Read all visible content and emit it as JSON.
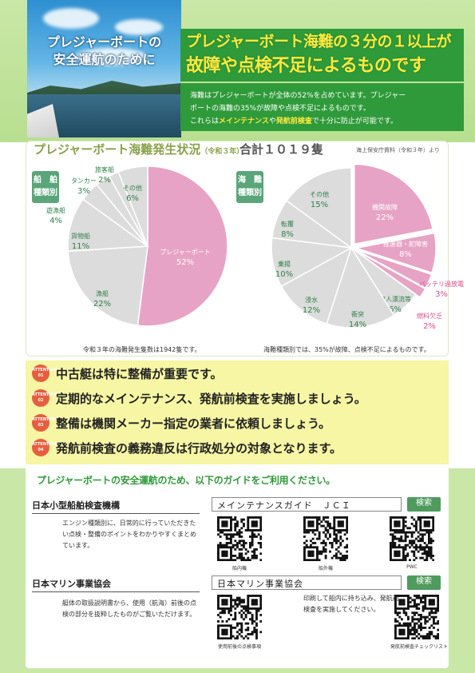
{
  "header": {
    "photo_title_1": "プレジャーボートの",
    "photo_title_2": "安全運航のために",
    "headline_1": "プレジャーボート海難の３分の１以上が",
    "headline_2": "故障や点検不足によるものです",
    "lead_1": "海難はプレジャーボートが全体の52%を占めています。プレジャー",
    "lead_2": "ボートの海難の35%が故障や点検不足によるものです。",
    "lead_3a": "これらは",
    "lead_3b": "メインテナンス",
    "lead_3c": "や",
    "lead_3d": "発航前検査",
    "lead_3e": "で十分に防止が可能です。"
  },
  "chart_section": {
    "title": "プレジャーボート海難発生状況",
    "title_year": "（令和３年）",
    "total": "合計１０１９隻",
    "source": "海上保安庁資料（令和３年）より",
    "left_box": [
      "船　舶",
      "種類別"
    ],
    "right_box": [
      "海　難",
      "種類別"
    ],
    "left_note": "令和３年の海難発生隻数は1942隻です。",
    "right_note": "海難種類別では、35%が故障、点検不足によるものです。"
  },
  "chart_data": [
    {
      "type": "pie",
      "title": "",
      "unit": "%",
      "slices": [
        {
          "label": "プレジャーボート",
          "value": 52,
          "color": "#e7a3c5"
        },
        {
          "label": "漁船",
          "value": 22,
          "color": "#dcdcdc"
        },
        {
          "label": "貨物船",
          "value": 11,
          "color": "#dcdcdc"
        },
        {
          "label": "遊漁船",
          "value": 4,
          "color": "#dcdcdc"
        },
        {
          "label": "タンカー",
          "value": 3,
          "color": "#dcdcdc"
        },
        {
          "label": "旅客船",
          "value": 2,
          "color": "#dcdcdc"
        },
        {
          "label": "その他",
          "value": 6,
          "color": "#dcdcdc"
        }
      ]
    },
    {
      "type": "pie",
      "title": "",
      "unit": "%",
      "slices": [
        {
          "label": "機関故障",
          "value": 22,
          "color": "#e7a3c5"
        },
        {
          "label": "推進器・舵障害",
          "value": 8,
          "color": "#e7a3c5"
        },
        {
          "label": "バッテリ過放電",
          "value": 3,
          "color": "#e7a3c5"
        },
        {
          "label": "燃料欠乏",
          "value": 2,
          "color": "#e7a3c5"
        },
        {
          "label": "無人漂流等",
          "value": 6,
          "color": "#dcdcdc"
        },
        {
          "label": "衝突",
          "value": 14,
          "color": "#dcdcdc"
        },
        {
          "label": "浸水",
          "value": 12,
          "color": "#dcdcdc"
        },
        {
          "label": "乗揚",
          "value": 10,
          "color": "#dcdcdc"
        },
        {
          "label": "転覆",
          "value": 8,
          "color": "#dcdcdc"
        },
        {
          "label": "その他",
          "value": 15,
          "color": "#dcdcdc"
        }
      ]
    }
  ],
  "attention": [
    {
      "badge": "ATTENTION 01",
      "text": "中古艇は特に整備が重要です。"
    },
    {
      "badge": "ATTENTION 02",
      "text": "定期的なメインテナンス、発航前検査を実施しましょう。"
    },
    {
      "badge": "ATTENTION 03",
      "text": "整備は機関メーカー指定の業者に依頼しましょう。"
    },
    {
      "badge": "ATTENTION 04",
      "text": "発航前検査の義務違反は行政処分の対象となります。"
    }
  ],
  "guides": {
    "heading": "プレジャーボートの安全運航のため、以下のガイドをご利用ください。",
    "org1": {
      "name": "日本小型船舶検査機構",
      "desc": "エンジン種類別に、日常的に行っていただきたい点検・整備のポイントをわかりやすくまとめています。",
      "search_text": "メインテナンスガイド　ＪＣＩ",
      "search_btn": "検索",
      "qr_labels": [
        "船内機",
        "船外機",
        "PWC"
      ]
    },
    "org2": {
      "name": "日本マリン事業協会",
      "desc": "艇体の取扱説明書から、使用（航海）前後の点検の部分を抜粋したものがご覧いただけます。",
      "search_text": "日本マリン事業協会",
      "search_btn": "検索",
      "note": "印刷して船内に持ち込み、発航前検査を実施してください。",
      "qr_labels": [
        "使用前後の点検事項",
        "発航前検査チェックリスト"
      ]
    }
  }
}
